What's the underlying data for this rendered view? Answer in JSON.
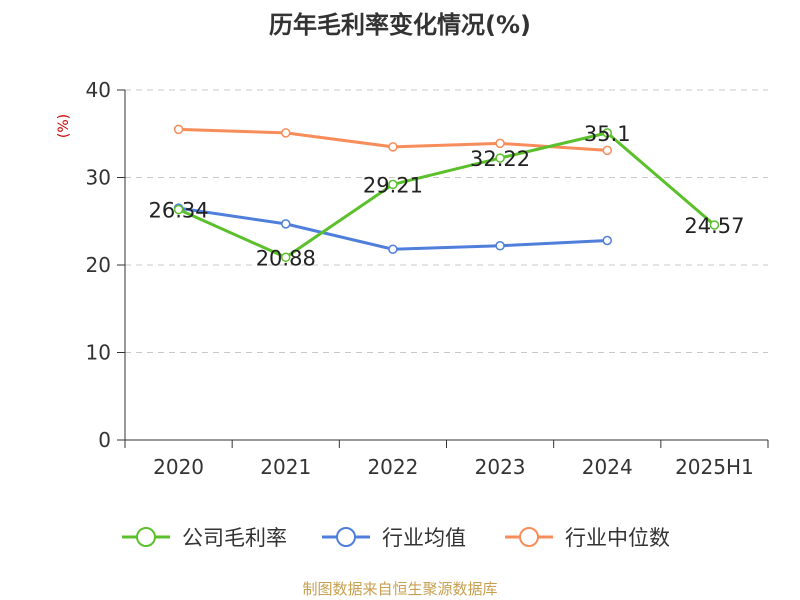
{
  "chart_data": {
    "type": "line",
    "title": "历年毛利率变化情况(%)",
    "ylabel": "(%)",
    "categories": [
      "2020",
      "2021",
      "2022",
      "2023",
      "2024",
      "2025H1"
    ],
    "ylim": [
      0,
      40
    ],
    "yticks": [
      "0",
      "10",
      "20",
      "30",
      "40"
    ],
    "grid": true,
    "legend_position": "bottom",
    "series": [
      {
        "name": "公司毛利率",
        "color": "#5bc02b",
        "values": [
          26.34,
          20.88,
          29.21,
          32.22,
          35.1,
          24.57
        ],
        "labels": [
          "26.34",
          "20.88",
          "29.21",
          "32.22",
          "35.1",
          "24.57"
        ]
      },
      {
        "name": "行业均值",
        "color": "#4f7fdb",
        "values": [
          26.5,
          24.7,
          21.8,
          22.2,
          22.8,
          null
        ]
      },
      {
        "name": "行业中位数",
        "color": "#f78d5a",
        "values": [
          35.5,
          35.1,
          33.5,
          33.9,
          33.1,
          null
        ]
      }
    ]
  },
  "source_text": "制图数据来自恒生聚源数据库",
  "source_color": "#c8a050"
}
